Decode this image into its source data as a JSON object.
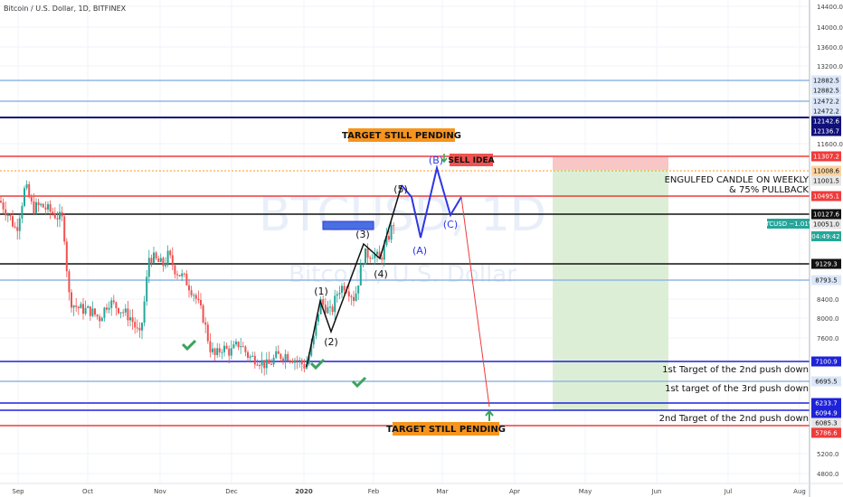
{
  "header": {
    "title": "Bitcoin / U.S. Dollar, 1D, BITFINEX"
  },
  "watermark": {
    "symbol": "BTCUSD, 1D",
    "name": "Bitcoin / U.S. Dollar"
  },
  "colors": {
    "up": "#26a69a",
    "down": "#ef5350",
    "blue_line": "#1e22d8",
    "light_blue": "#90b7e6",
    "red_line": "#ef3b3b",
    "orange": "#f7941d",
    "wave_black": "#111111",
    "wave_blue": "#2e36e6",
    "sl_zone": "#f9c6c6",
    "tp_zone": "#dcefd6"
  },
  "chart_data": {
    "type": "candlestick",
    "ylim": [
      4800,
      14400
    ],
    "y_ticks": [
      "14400.0",
      "14000.0",
      "13600.0",
      "13200.0",
      "11600.0",
      "8400.0",
      "8000.0",
      "7600.0",
      "5200.0",
      "4800.0"
    ],
    "x_ticks": [
      "Sep",
      "Oct",
      "Nov",
      "Dec",
      "2020",
      "Feb",
      "Mar",
      "Apr",
      "May",
      "Jun",
      "Jul",
      "Aug"
    ],
    "levels": [
      {
        "price": 12882.5,
        "label": "12882.5",
        "style": "light_blue"
      },
      {
        "price": 12882.5,
        "label": "12882.5",
        "style": "light_blue"
      },
      {
        "price": 12472.2,
        "label": "12472.2",
        "style": "light_blue"
      },
      {
        "price": 12472.2,
        "label": "12472.2",
        "style": "light_blue"
      },
      {
        "price": 12142.6,
        "label": "12142.6",
        "style": "navy"
      },
      {
        "price": 12136.7,
        "label": "12136.7",
        "style": "navy"
      },
      {
        "price": 11307.2,
        "label": "11307.2",
        "style": "red"
      },
      {
        "price": 11008.6,
        "label": "11008.6",
        "style": "orange"
      },
      {
        "price": 11001.5,
        "label": "11001.5",
        "style": "gray"
      },
      {
        "price": 10495.1,
        "label": "10495.1",
        "style": "red"
      },
      {
        "price": 10127.6,
        "label": "10127.6",
        "style": "black"
      },
      {
        "price": 10051.0,
        "label": "10051.0",
        "style": "gray"
      },
      {
        "price": 9129.3,
        "label": "9129.3",
        "style": "black"
      },
      {
        "price": 8793.5,
        "label": "8793.5",
        "style": "light_blue"
      },
      {
        "price": 7100.9,
        "label": "7100.9",
        "style": "blue"
      },
      {
        "price": 6695.5,
        "label": "6695.5",
        "style": "light_blue"
      },
      {
        "price": 6233.7,
        "label": "6233.7",
        "style": "blue"
      },
      {
        "price": 6094.9,
        "label": "6094.9",
        "style": "blue"
      },
      {
        "price": 6085.3,
        "label": "6085.3",
        "style": "gray"
      },
      {
        "price": 5786.6,
        "label": "5786.6",
        "style": "red"
      }
    ],
    "live_badge": {
      "text": "BTCUSD −1.01%",
      "timer": "04:49:42"
    },
    "wave_labels_black": [
      "(1)",
      "(2)",
      "(3)",
      "(4)",
      "(5)"
    ],
    "wave_labels_blue": [
      "(A)",
      "(B)",
      "(C)"
    ]
  },
  "annotations": {
    "target_top": "TARGET STILL PENDING",
    "target_bottom": "TARGET STILL PENDING",
    "sell_idea": "SELL IDEA",
    "engulfed_line1": "ENGULFED CANDLE ON WEEKLY",
    "engulfed_line2": "& 75% PULLBACK",
    "target_1": "1st Target of the 2nd push down",
    "target_2": "1st target of the 3rd push down",
    "target_3": "2nd Target of the 2nd push down"
  }
}
